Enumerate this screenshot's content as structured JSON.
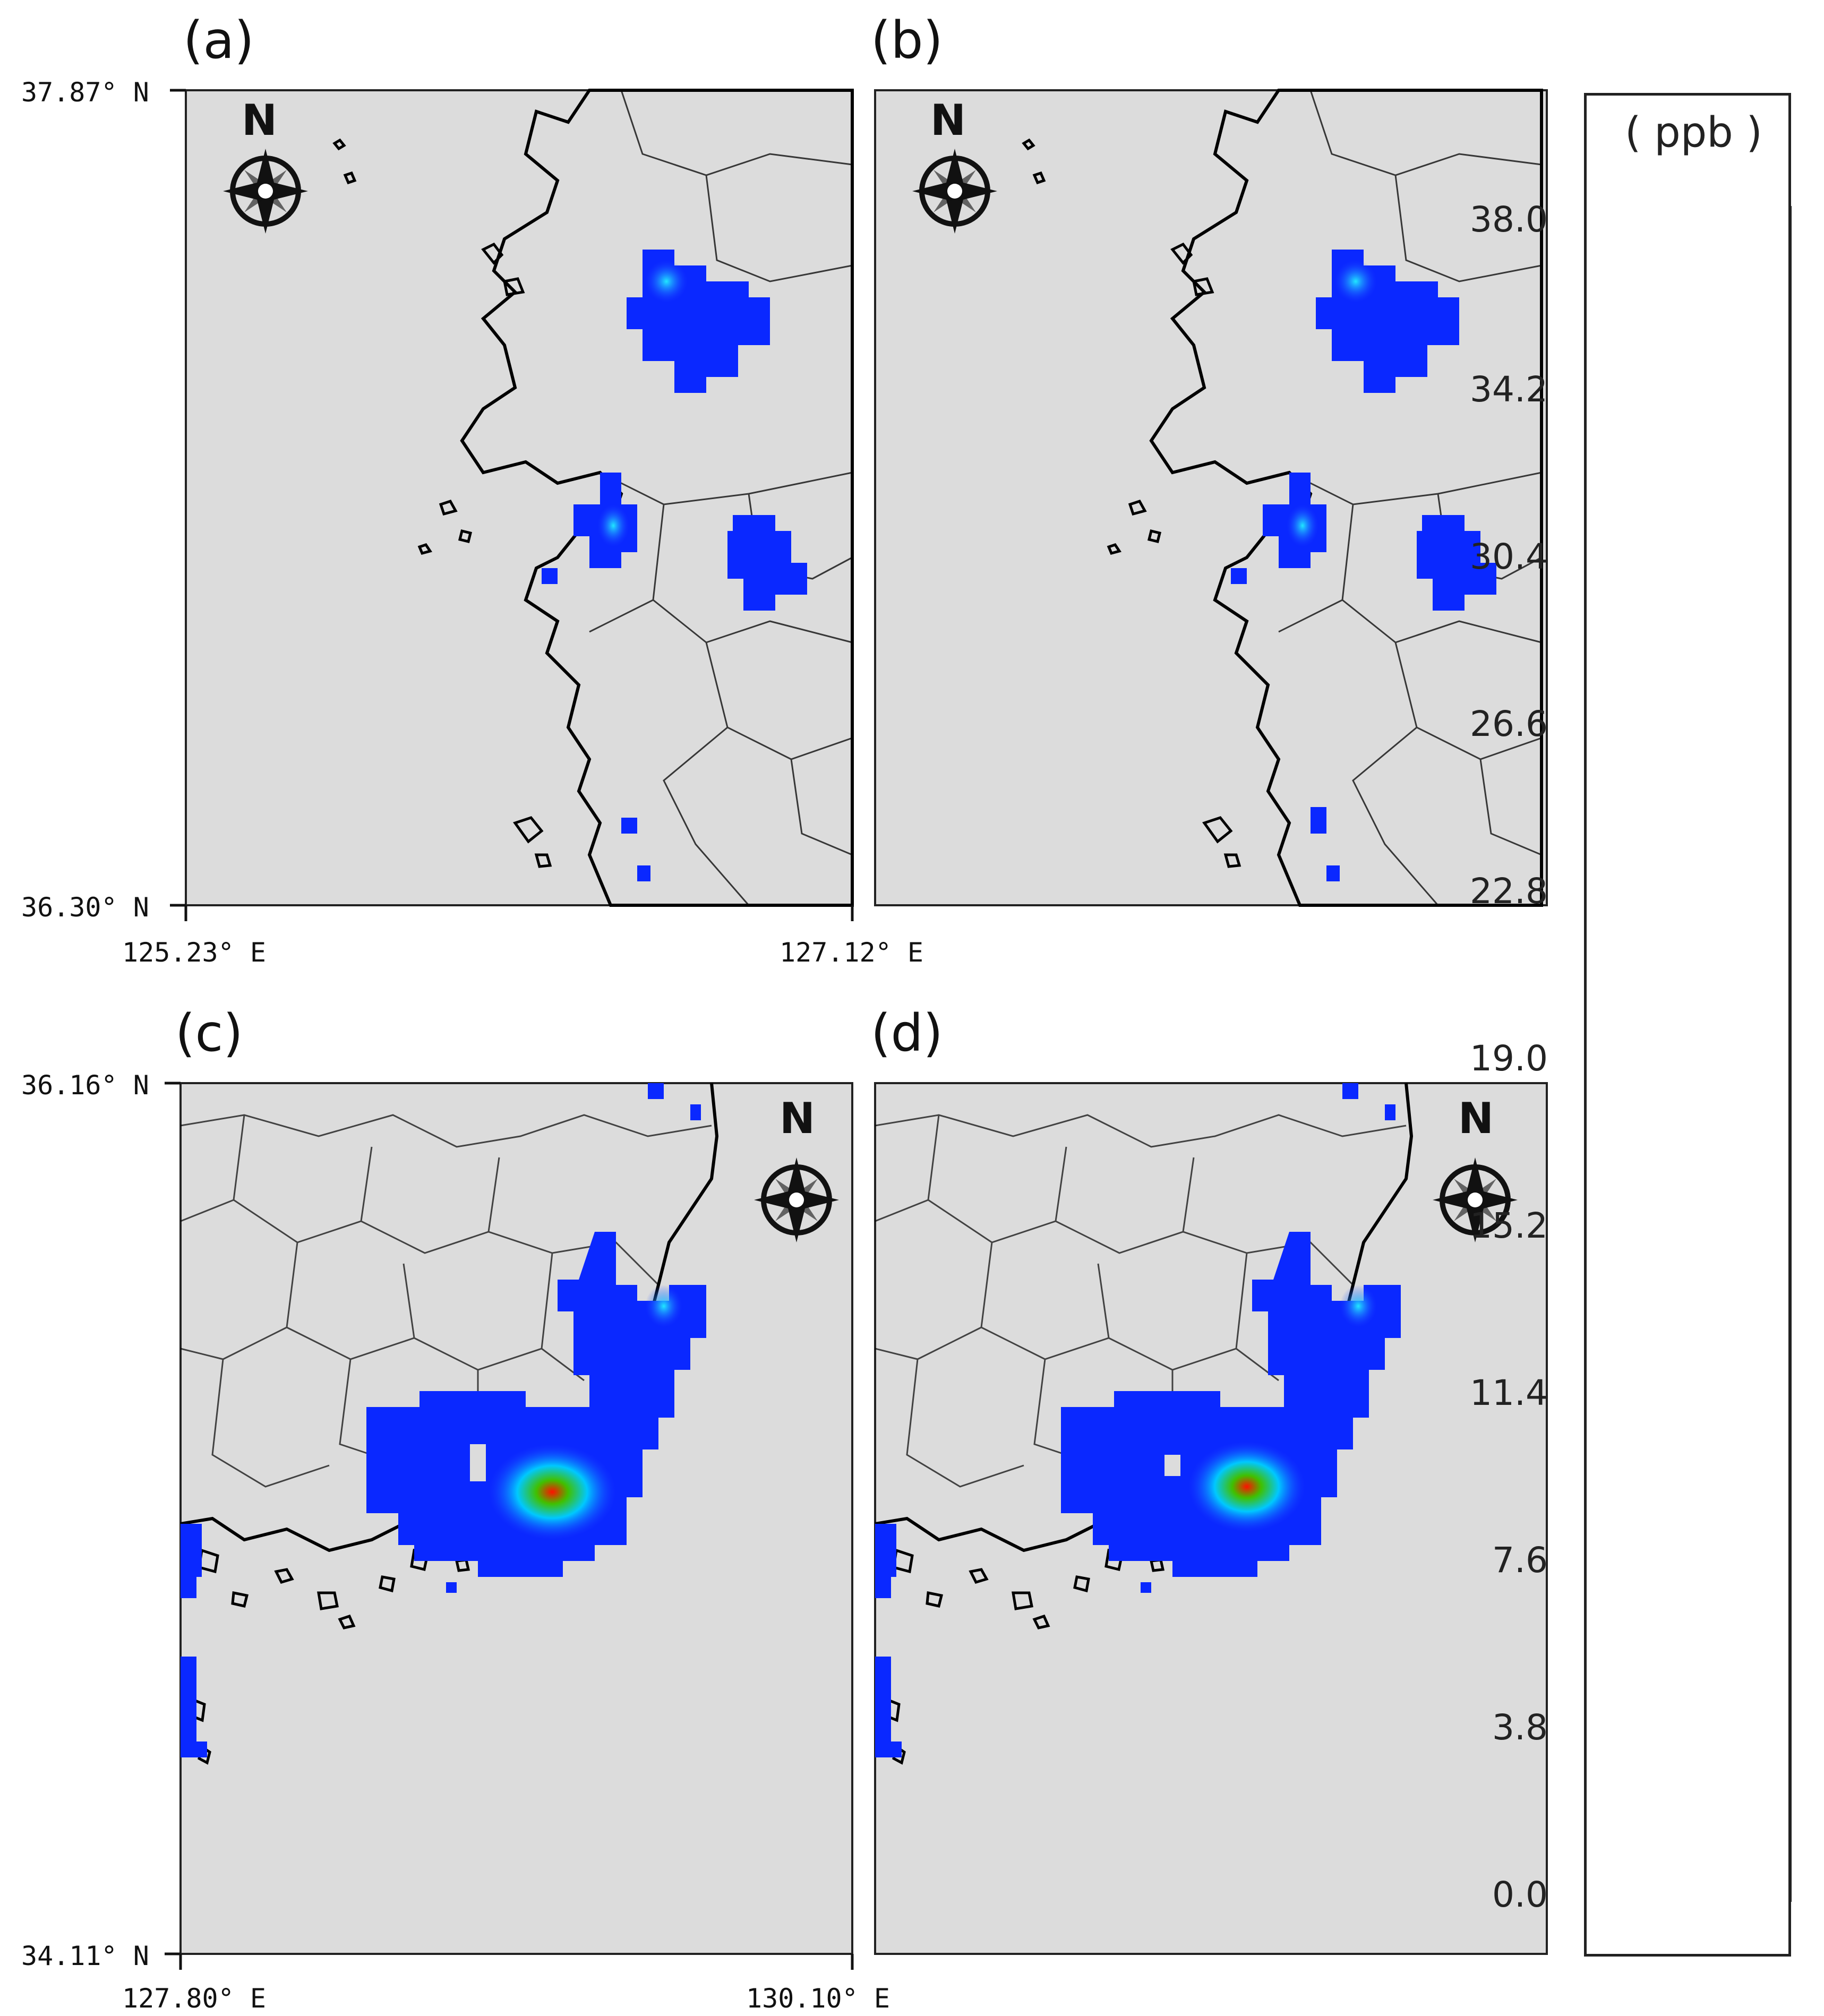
{
  "panels": [
    {
      "label": "(a)",
      "north_label": "N"
    },
    {
      "label": "(b)",
      "north_label": "N"
    },
    {
      "label": "(c)",
      "north_label": "N"
    },
    {
      "label": "(d)",
      "north_label": "N"
    }
  ],
  "axes_top": {
    "lat_max": "37.87° N",
    "lat_min": "36.30° N",
    "lon_min": "125.23° E",
    "lon_max": "127.12° E"
  },
  "axes_bottom": {
    "lat_max": "36.16° N",
    "lat_min": "34.11° N",
    "lon_min": "127.80° E",
    "lon_max": "130.10° E"
  },
  "colorbar": {
    "unit": "( ppb  )",
    "ticks": [
      "38.0",
      "34.2",
      "30.4",
      "26.6",
      "22.8",
      "19.0",
      "15.2",
      "11.4",
      "7.6",
      "3.8",
      "0.0"
    ],
    "min": 0.0,
    "max": 38.0,
    "colors": [
      "#dcdcdc",
      "#0000ff",
      "#0a64f0",
      "#00d2e6",
      "#00e1aa",
      "#00f000",
      "#a0f000",
      "#f0f000",
      "#ffb400",
      "#ff6400",
      "#ff0000"
    ]
  },
  "colors": {
    "background": "#dcdcdc",
    "plume_low": "#0a28ff",
    "coast": "#000000"
  }
}
